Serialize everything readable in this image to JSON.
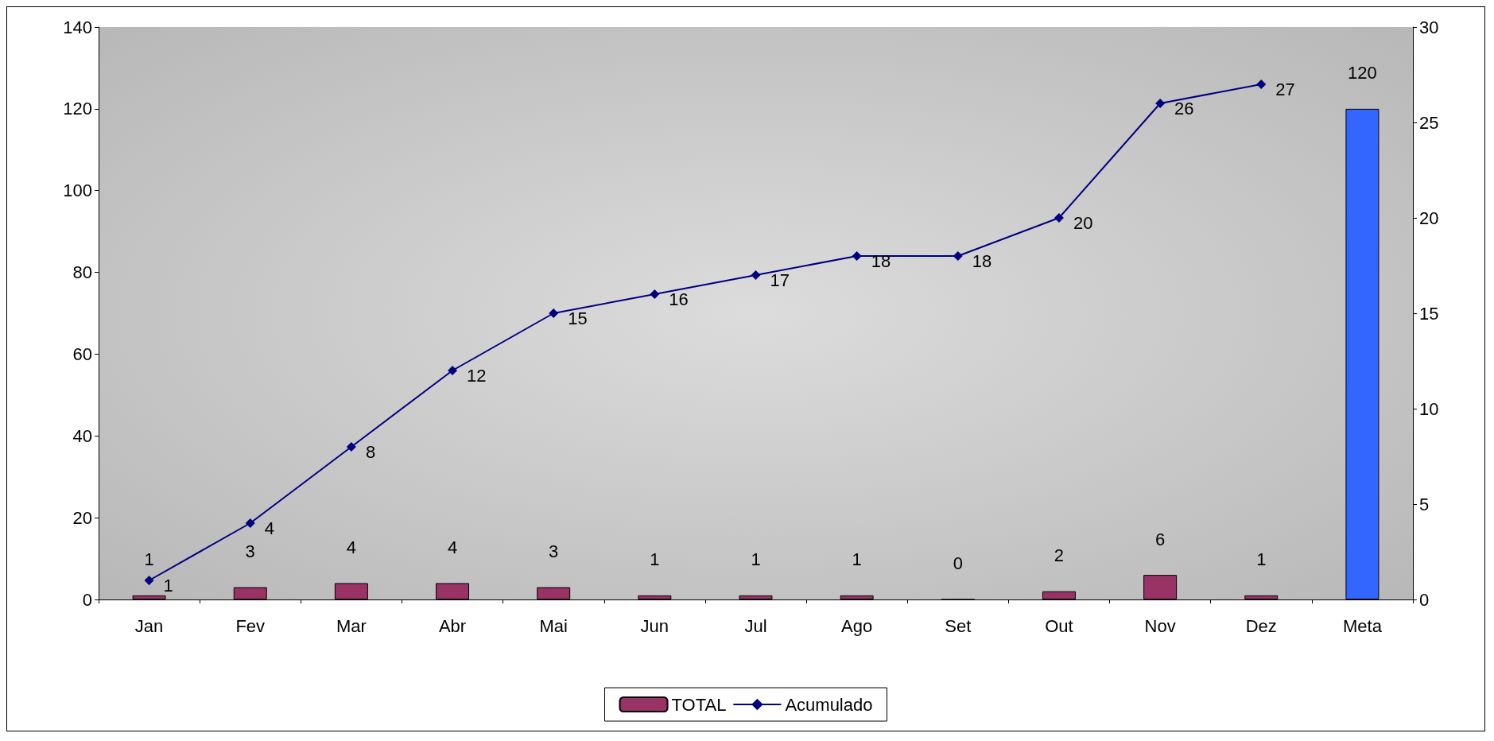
{
  "chart_data": {
    "type": "bar",
    "categories": [
      "Jan",
      "Fev",
      "Mar",
      "Abr",
      "Mai",
      "Jun",
      "Jul",
      "Ago",
      "Set",
      "Out",
      "Nov",
      "Dez",
      "Meta"
    ],
    "series": [
      {
        "name": "TOTAL",
        "color": "#993366",
        "colors": [
          "#993366",
          "#993366",
          "#993366",
          "#993366",
          "#993366",
          "#993366",
          "#993366",
          "#993366",
          "#993366",
          "#993366",
          "#993366",
          "#993366",
          "#3366ff"
        ],
        "values": [
          1,
          3,
          4,
          4,
          3,
          1,
          1,
          1,
          0,
          2,
          6,
          1,
          120
        ]
      },
      {
        "name": "Acumulado",
        "type": "line",
        "axis": "y2",
        "color": "#000080",
        "values": [
          1,
          4,
          8,
          12,
          15,
          16,
          17,
          18,
          18,
          20,
          26,
          27,
          null
        ]
      }
    ],
    "ylim": [
      0,
      140
    ],
    "yticks": [
      0,
      20,
      40,
      60,
      80,
      100,
      120,
      140
    ],
    "y2lim": [
      0,
      30
    ],
    "y2ticks": [
      0,
      5,
      10,
      15,
      20,
      25,
      30
    ],
    "data_labels": true,
    "marker": "diamond",
    "line_style": "solid",
    "grid": false,
    "legend": "bottom"
  }
}
